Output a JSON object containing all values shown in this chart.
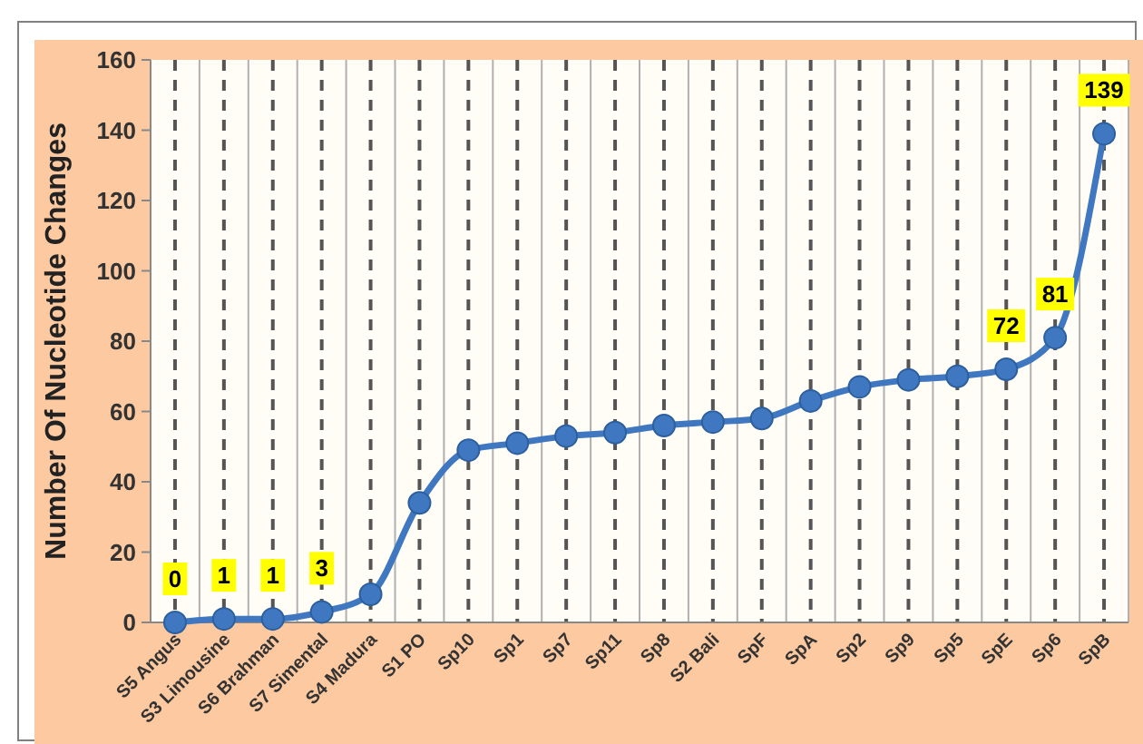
{
  "chart_data": {
    "type": "line",
    "ylabel": "Number Of Nucleotide Changes",
    "categories": [
      "S5 Angus",
      "S3 Limousine",
      "S6 Brahman",
      "S7 Simental",
      "S4 Madura",
      "S1 PO",
      "Sp10",
      "Sp1",
      "Sp7",
      "Sp11",
      "Sp8",
      "S2 Bali",
      "SpF",
      "SpA",
      "Sp2",
      "Sp9",
      "Sp5",
      "SpE",
      "Sp6",
      "SpB"
    ],
    "series": [
      {
        "color": "#3f78c0",
        "values": [
          0,
          1,
          1,
          3,
          8,
          34,
          49,
          51,
          53,
          54,
          56,
          57,
          58,
          63,
          67,
          69,
          70,
          72,
          81,
          139
        ],
        "value_labels": [
          "0",
          "1",
          "1",
          "3",
          null,
          null,
          null,
          null,
          null,
          null,
          null,
          null,
          null,
          null,
          null,
          null,
          null,
          "72",
          "81",
          "139"
        ]
      }
    ],
    "ylim": [
      0,
      160
    ],
    "yticks": [
      0,
      20,
      40,
      60,
      80,
      100,
      120,
      140,
      160
    ],
    "grid": "x",
    "marker": "circle",
    "line_style": "solid"
  }
}
